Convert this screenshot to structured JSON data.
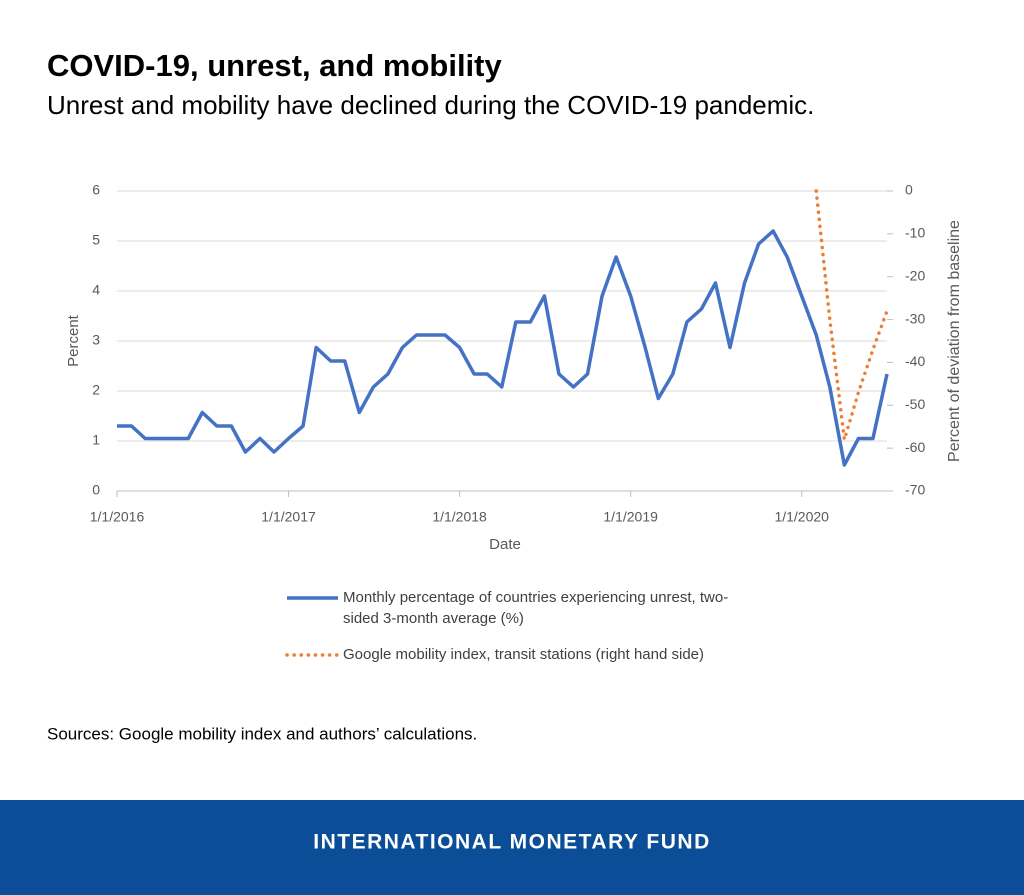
{
  "chart_data": {
    "type": "line",
    "title": "COVID-19, unrest, and mobility",
    "subtitle": "Unrest and mobility have declined during the COVID-19 pandemic.",
    "x_label": "Date",
    "y_label": "Percent",
    "y2_label": "Percent of deviation from baseline",
    "source": "Sources: Google mobility index and authors’ calculations.",
    "footer": "INTERNATIONAL MONETARY FUND",
    "x": [
      "1/1/2016",
      "2/1/2016",
      "3/1/2016",
      "4/1/2016",
      "5/1/2016",
      "6/1/2016",
      "7/1/2016",
      "8/1/2016",
      "9/1/2016",
      "10/1/2016",
      "11/1/2016",
      "12/1/2016",
      "1/1/2017",
      "2/1/2017",
      "3/1/2017",
      "4/1/2017",
      "5/1/2017",
      "6/1/2017",
      "7/1/2017",
      "8/1/2017",
      "9/1/2017",
      "10/1/2017",
      "11/1/2017",
      "12/1/2017",
      "1/1/2018",
      "2/1/2018",
      "3/1/2018",
      "4/1/2018",
      "5/1/2018",
      "6/1/2018",
      "7/1/2018",
      "8/1/2018",
      "9/1/2018",
      "10/1/2018",
      "11/1/2018",
      "12/1/2018",
      "1/1/2019",
      "2/1/2019",
      "3/1/2019",
      "4/1/2019",
      "5/1/2019",
      "6/1/2019",
      "7/1/2019",
      "8/1/2019",
      "9/1/2019",
      "10/1/2019",
      "11/1/2019",
      "12/1/2019",
      "1/1/2020",
      "2/1/2020",
      "3/1/2020",
      "4/1/2020",
      "5/1/2020",
      "6/1/2020",
      "7/1/2020"
    ],
    "xlim": [
      "1/1/2016",
      "7/1/2020"
    ],
    "xticks": [
      "1/1/2016",
      "1/1/2017",
      "1/1/2018",
      "1/1/2019",
      "1/1/2020"
    ],
    "ylim": [
      0,
      6
    ],
    "yticks": [
      0,
      1,
      2,
      3,
      4,
      5,
      6
    ],
    "y2lim": [
      -70,
      0
    ],
    "y2ticks": [
      0,
      -10,
      -20,
      -30,
      -40,
      -50,
      -60,
      -70
    ],
    "grid": true,
    "legend": "bottom",
    "series": [
      {
        "name": "Monthly percentage of countries experiencing unrest, two-sided 3-month average (%)",
        "color": "#4472c4",
        "style": "solid",
        "values": [
          1.3,
          1.3,
          1.05,
          1.05,
          1.05,
          1.05,
          1.57,
          1.3,
          1.3,
          0.78,
          1.05,
          0.78,
          1.05,
          1.3,
          2.87,
          2.6,
          2.6,
          1.57,
          2.08,
          2.34,
          2.87,
          3.12,
          3.12,
          3.12,
          2.87,
          2.34,
          2.34,
          2.08,
          3.38,
          3.38,
          3.9,
          2.34,
          2.08,
          2.34,
          3.9,
          4.68,
          3.9,
          2.87,
          1.85,
          2.34,
          3.38,
          3.64,
          4.16,
          2.87,
          4.16,
          4.94,
          5.2,
          4.68,
          3.9,
          3.12,
          2.08,
          0.52,
          1.05,
          1.05,
          2.34
        ]
      },
      {
        "name": "Google mobility index, transit stations (right hand side)",
        "color": "#ed7d31",
        "style": "dotted",
        "axis": "y2",
        "values": [
          null,
          null,
          null,
          null,
          null,
          null,
          null,
          null,
          null,
          null,
          null,
          null,
          null,
          null,
          null,
          null,
          null,
          null,
          null,
          null,
          null,
          null,
          null,
          null,
          null,
          null,
          null,
          null,
          null,
          null,
          null,
          null,
          null,
          null,
          null,
          null,
          null,
          null,
          null,
          null,
          null,
          null,
          null,
          null,
          null,
          null,
          null,
          null,
          null,
          0,
          -30,
          -58,
          -47,
          -37,
          -28
        ]
      }
    ]
  }
}
